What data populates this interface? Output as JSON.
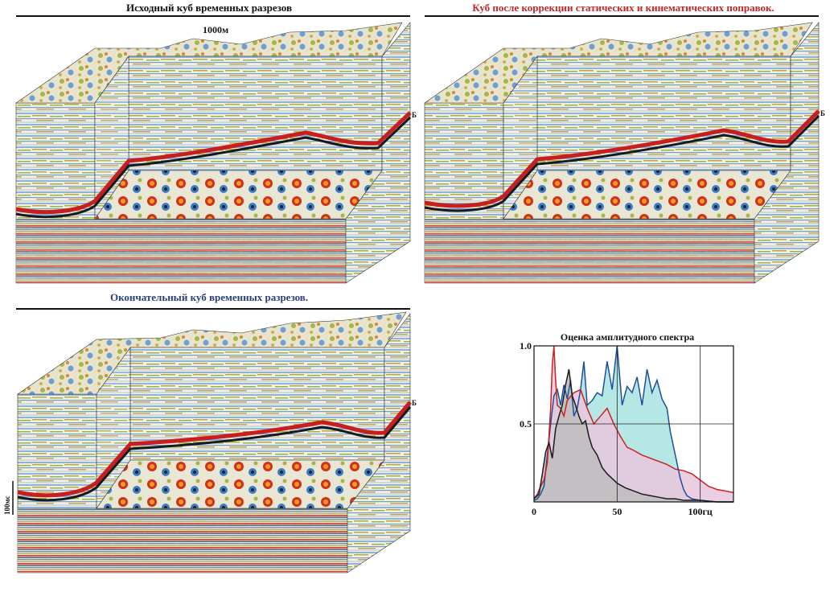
{
  "panels": [
    {
      "title": "Исходный куб временных разрезов",
      "title_color": "#111111",
      "scale_label": "1000м",
      "horizon_label": "Б"
    },
    {
      "title": "Куб после коррекции статических и кинематических поправок.",
      "title_color": "#c0282d",
      "horizon_label": "Б"
    },
    {
      "title": "Окончательный куб временных разрезов.",
      "title_color": "#2b3f7a",
      "horizon_label": "Б",
      "time_scale_label": "100мс"
    }
  ],
  "colors": {
    "seismic_red": "#c81e1e",
    "seismic_black": "#151a22",
    "seismic_blue": "#3f86c8",
    "seismic_olive": "#9a9a2a",
    "seismic_orange": "#e07820"
  },
  "chart_data": {
    "type": "line",
    "title": "Оценка амплитудного спектра",
    "xlabel": "",
    "ylabel": "",
    "xlim": [
      0,
      120
    ],
    "ylim": [
      0,
      1.0
    ],
    "x_tick_labels": [
      "0",
      "50",
      "100гц"
    ],
    "x_ticks": [
      0,
      50,
      100
    ],
    "y_tick_labels": [
      "0.5",
      "1.0"
    ],
    "y_ticks": [
      0.5,
      1.0
    ],
    "grid": true,
    "series": [
      {
        "color": "#1b1b1b",
        "fill": "#bdbdbd",
        "x": [
          0,
          3,
          5,
          7,
          9,
          11,
          13,
          15,
          17,
          19,
          21,
          23,
          25,
          27,
          29,
          31,
          33,
          35,
          38,
          41,
          44,
          47,
          50,
          55,
          60,
          65,
          70,
          75,
          80,
          85,
          90,
          95,
          100,
          110,
          120
        ],
        "y": [
          0.02,
          0.05,
          0.18,
          0.32,
          0.38,
          0.28,
          0.47,
          0.55,
          0.62,
          0.75,
          0.85,
          0.68,
          0.62,
          0.55,
          0.5,
          0.52,
          0.42,
          0.35,
          0.3,
          0.22,
          0.18,
          0.15,
          0.12,
          0.09,
          0.07,
          0.05,
          0.04,
          0.03,
          0.02,
          0.02,
          0.01,
          0.01,
          0.01,
          0.0,
          0.0
        ]
      },
      {
        "color": "#d02020",
        "fill": "#e9c6dd",
        "x": [
          0,
          2,
          4,
          6,
          8,
          10,
          11,
          12,
          13,
          14,
          16,
          18,
          20,
          24,
          28,
          32,
          36,
          40,
          44,
          48,
          52,
          56,
          60,
          65,
          70,
          75,
          80,
          85,
          90,
          95,
          100,
          105,
          110,
          115,
          120
        ],
        "y": [
          0.02,
          0.05,
          0.1,
          0.14,
          0.25,
          0.6,
          0.88,
          1.0,
          0.78,
          0.62,
          0.6,
          0.55,
          0.65,
          0.7,
          0.72,
          0.6,
          0.5,
          0.55,
          0.6,
          0.5,
          0.42,
          0.35,
          0.33,
          0.3,
          0.28,
          0.26,
          0.24,
          0.21,
          0.2,
          0.18,
          0.14,
          0.1,
          0.08,
          0.07,
          0.06
        ]
      },
      {
        "color": "#1f4f9a",
        "fill": "#a8e4df",
        "x": [
          0,
          2,
          4,
          6,
          8,
          10,
          12,
          14,
          16,
          18,
          20,
          22,
          24,
          26,
          28,
          30,
          32,
          35,
          38,
          41,
          44,
          47,
          50,
          53,
          56,
          59,
          62,
          65,
          68,
          71,
          74,
          77,
          80,
          82,
          84,
          86,
          88,
          90,
          92,
          95,
          100,
          110,
          120
        ],
        "y": [
          0.01,
          0.02,
          0.05,
          0.1,
          0.3,
          0.5,
          0.68,
          0.72,
          0.62,
          0.75,
          0.66,
          0.78,
          0.55,
          0.6,
          0.72,
          0.9,
          0.62,
          0.65,
          0.7,
          0.68,
          0.9,
          0.72,
          1.0,
          0.62,
          0.74,
          0.7,
          0.8,
          0.62,
          0.85,
          0.7,
          0.78,
          0.66,
          0.6,
          0.45,
          0.35,
          0.25,
          0.15,
          0.08,
          0.04,
          0.02,
          0.01,
          0.0,
          0.0
        ]
      }
    ]
  }
}
